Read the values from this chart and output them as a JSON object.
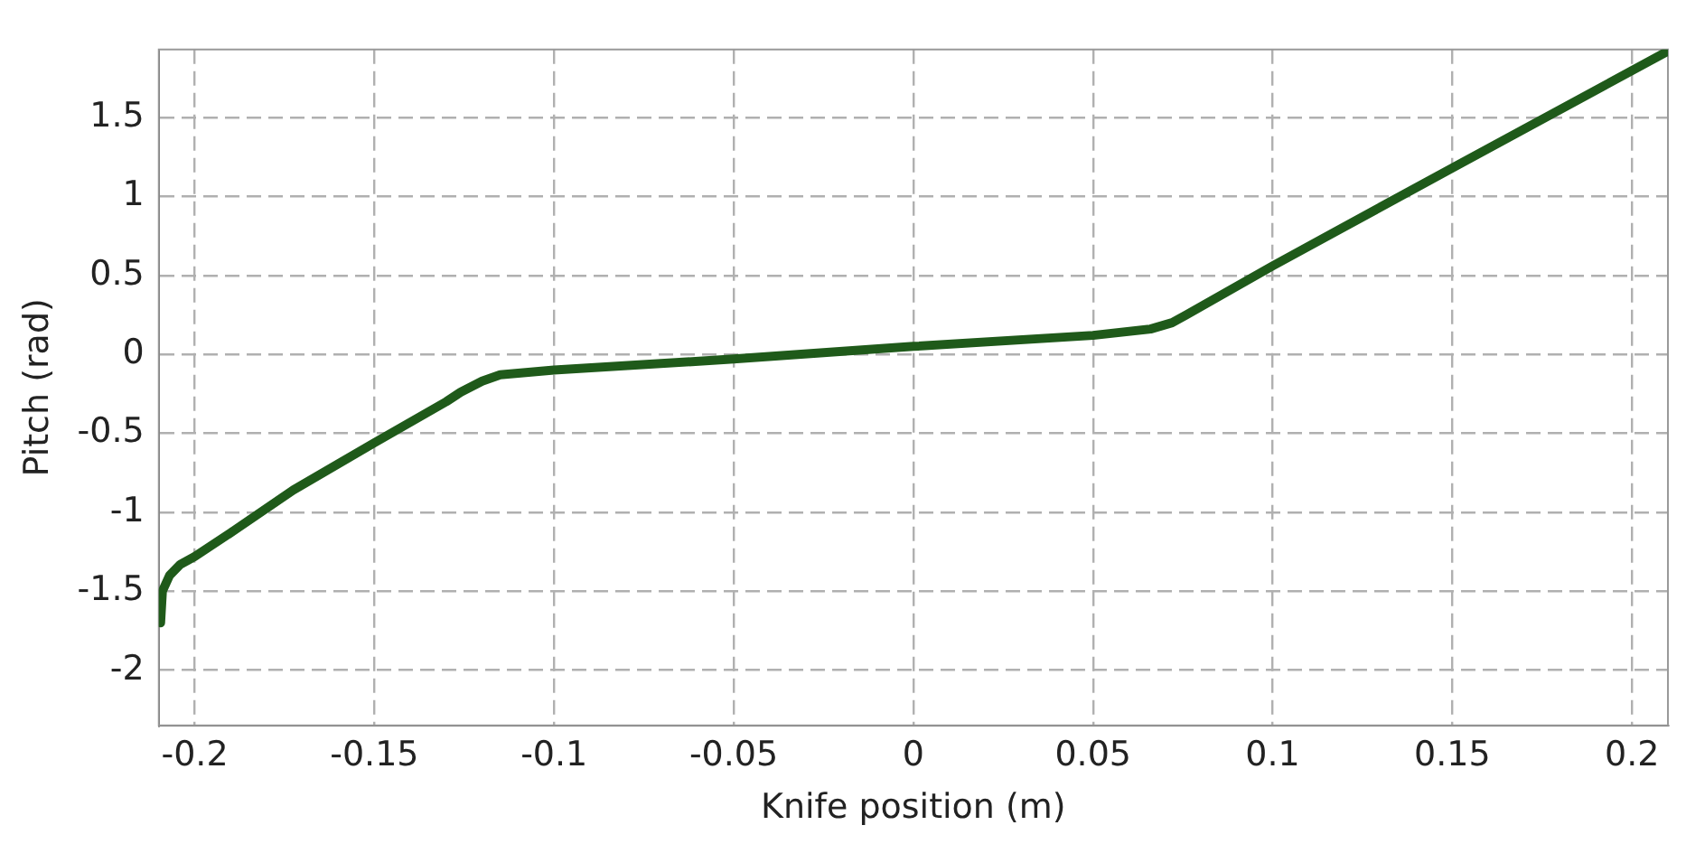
{
  "chart_data": {
    "type": "line",
    "xlabel": "Knife position (m)",
    "ylabel": "Pitch (rad)",
    "x": [
      -0.2095,
      -0.209,
      -0.207,
      -0.204,
      -0.2,
      -0.19,
      -0.1726,
      -0.15,
      -0.13,
      -0.126,
      -0.12,
      -0.115,
      -0.1,
      -0.05,
      0,
      0.05,
      0.066,
      0.072,
      0.076,
      0.1,
      0.15,
      0.21
    ],
    "series": [
      {
        "color": "#1f5a1a",
        "values": [
          -1.7,
          -1.5,
          -1.4,
          -1.33,
          -1.28,
          -1.13,
          -0.86,
          -0.56,
          -0.3,
          -0.24,
          -0.17,
          -0.13,
          -0.1,
          -0.03,
          0.05,
          0.12,
          0.16,
          0.2,
          0.25,
          0.56,
          1.18,
          1.92
        ]
      }
    ],
    "xlim": [
      -0.21,
      0.21
    ],
    "xticks": [
      -0.2,
      -0.15,
      -0.1,
      -0.05,
      0,
      0.05,
      0.1,
      0.15,
      0.2
    ],
    "ylim": [
      -2.35,
      1.93
    ],
    "yticks": [
      -2,
      -1.5,
      -1,
      -0.5,
      0,
      0.5,
      1,
      1.5
    ],
    "grid": true,
    "legend": false,
    "marker": "none",
    "line_style": "solid"
  }
}
